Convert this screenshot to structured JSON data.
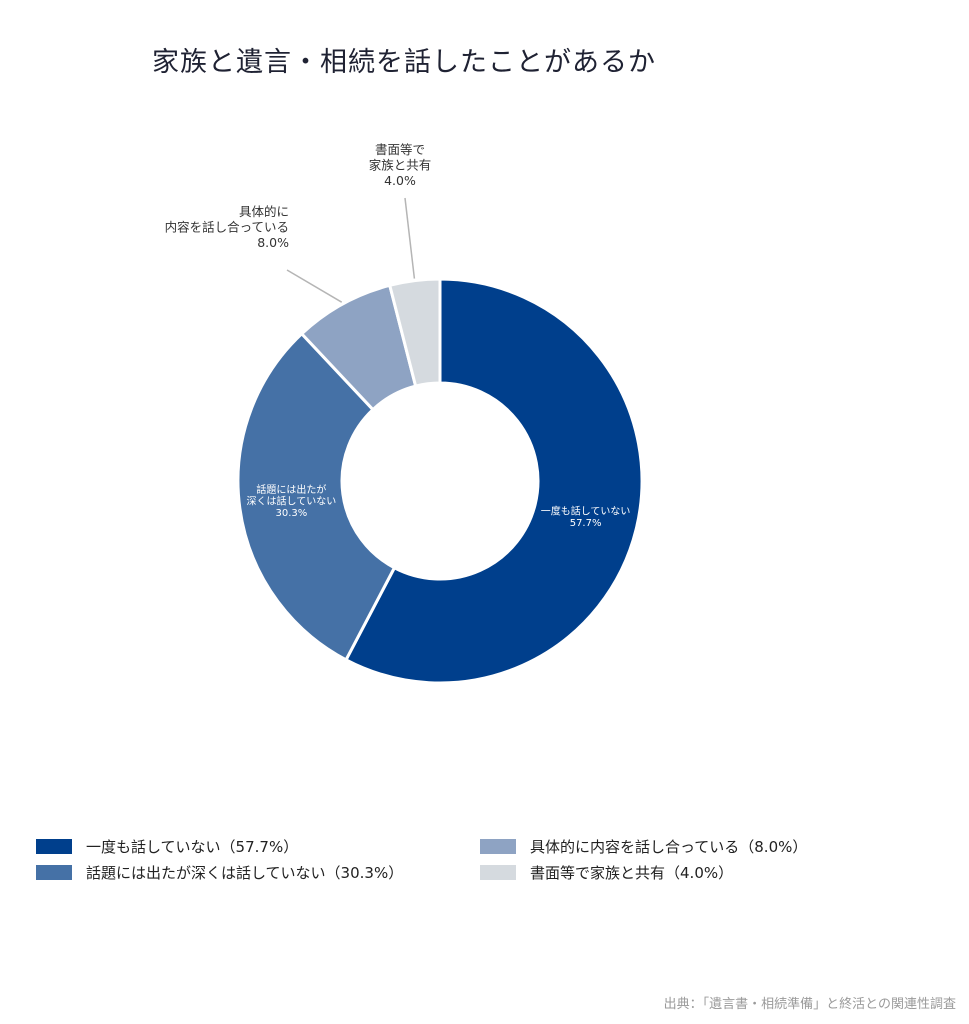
{
  "chart_data": {
    "type": "pie",
    "title": "家族と遺言・相続を話したことがあるか",
    "unit": "%",
    "slices": [
      {
        "label": "一度も話していない",
        "value": 57.7,
        "value_label": "57.7%",
        "color": "#003f8c",
        "legend": "一度も話していない（57.7%）",
        "label_lines": [
          "一度も話していない"
        ],
        "label_position": "inside"
      },
      {
        "label": "話題には出たが深くは話していない",
        "value": 30.3,
        "value_label": "30.3%",
        "color": "#4571a6",
        "legend": "話題には出たが深くは話していない（30.3%）",
        "label_lines": [
          "話題には出たが",
          "深くは話していない"
        ],
        "label_position": "inside"
      },
      {
        "label": "具体的に内容を話し合っている",
        "value": 8.0,
        "value_label": "8.0%",
        "color": "#8ea3c3",
        "legend": "具体的に内容を話し合っている（8.0%）",
        "label_lines": [
          "具体的に",
          "内容を話し合っている"
        ],
        "label_position": "outside"
      },
      {
        "label": "書面等で家族と共有",
        "value": 4.0,
        "value_label": "4.0%",
        "color": "#d5dadf",
        "legend": "書面等で家族と共有（4.0%）",
        "label_lines": [
          "書面等で",
          "家族と共有"
        ],
        "label_position": "outside"
      }
    ],
    "donut": true,
    "start": "top, clockwise",
    "legend_position": "bottom"
  },
  "source": "出典：「遺言書・相続準備」と終活との関連性調査"
}
